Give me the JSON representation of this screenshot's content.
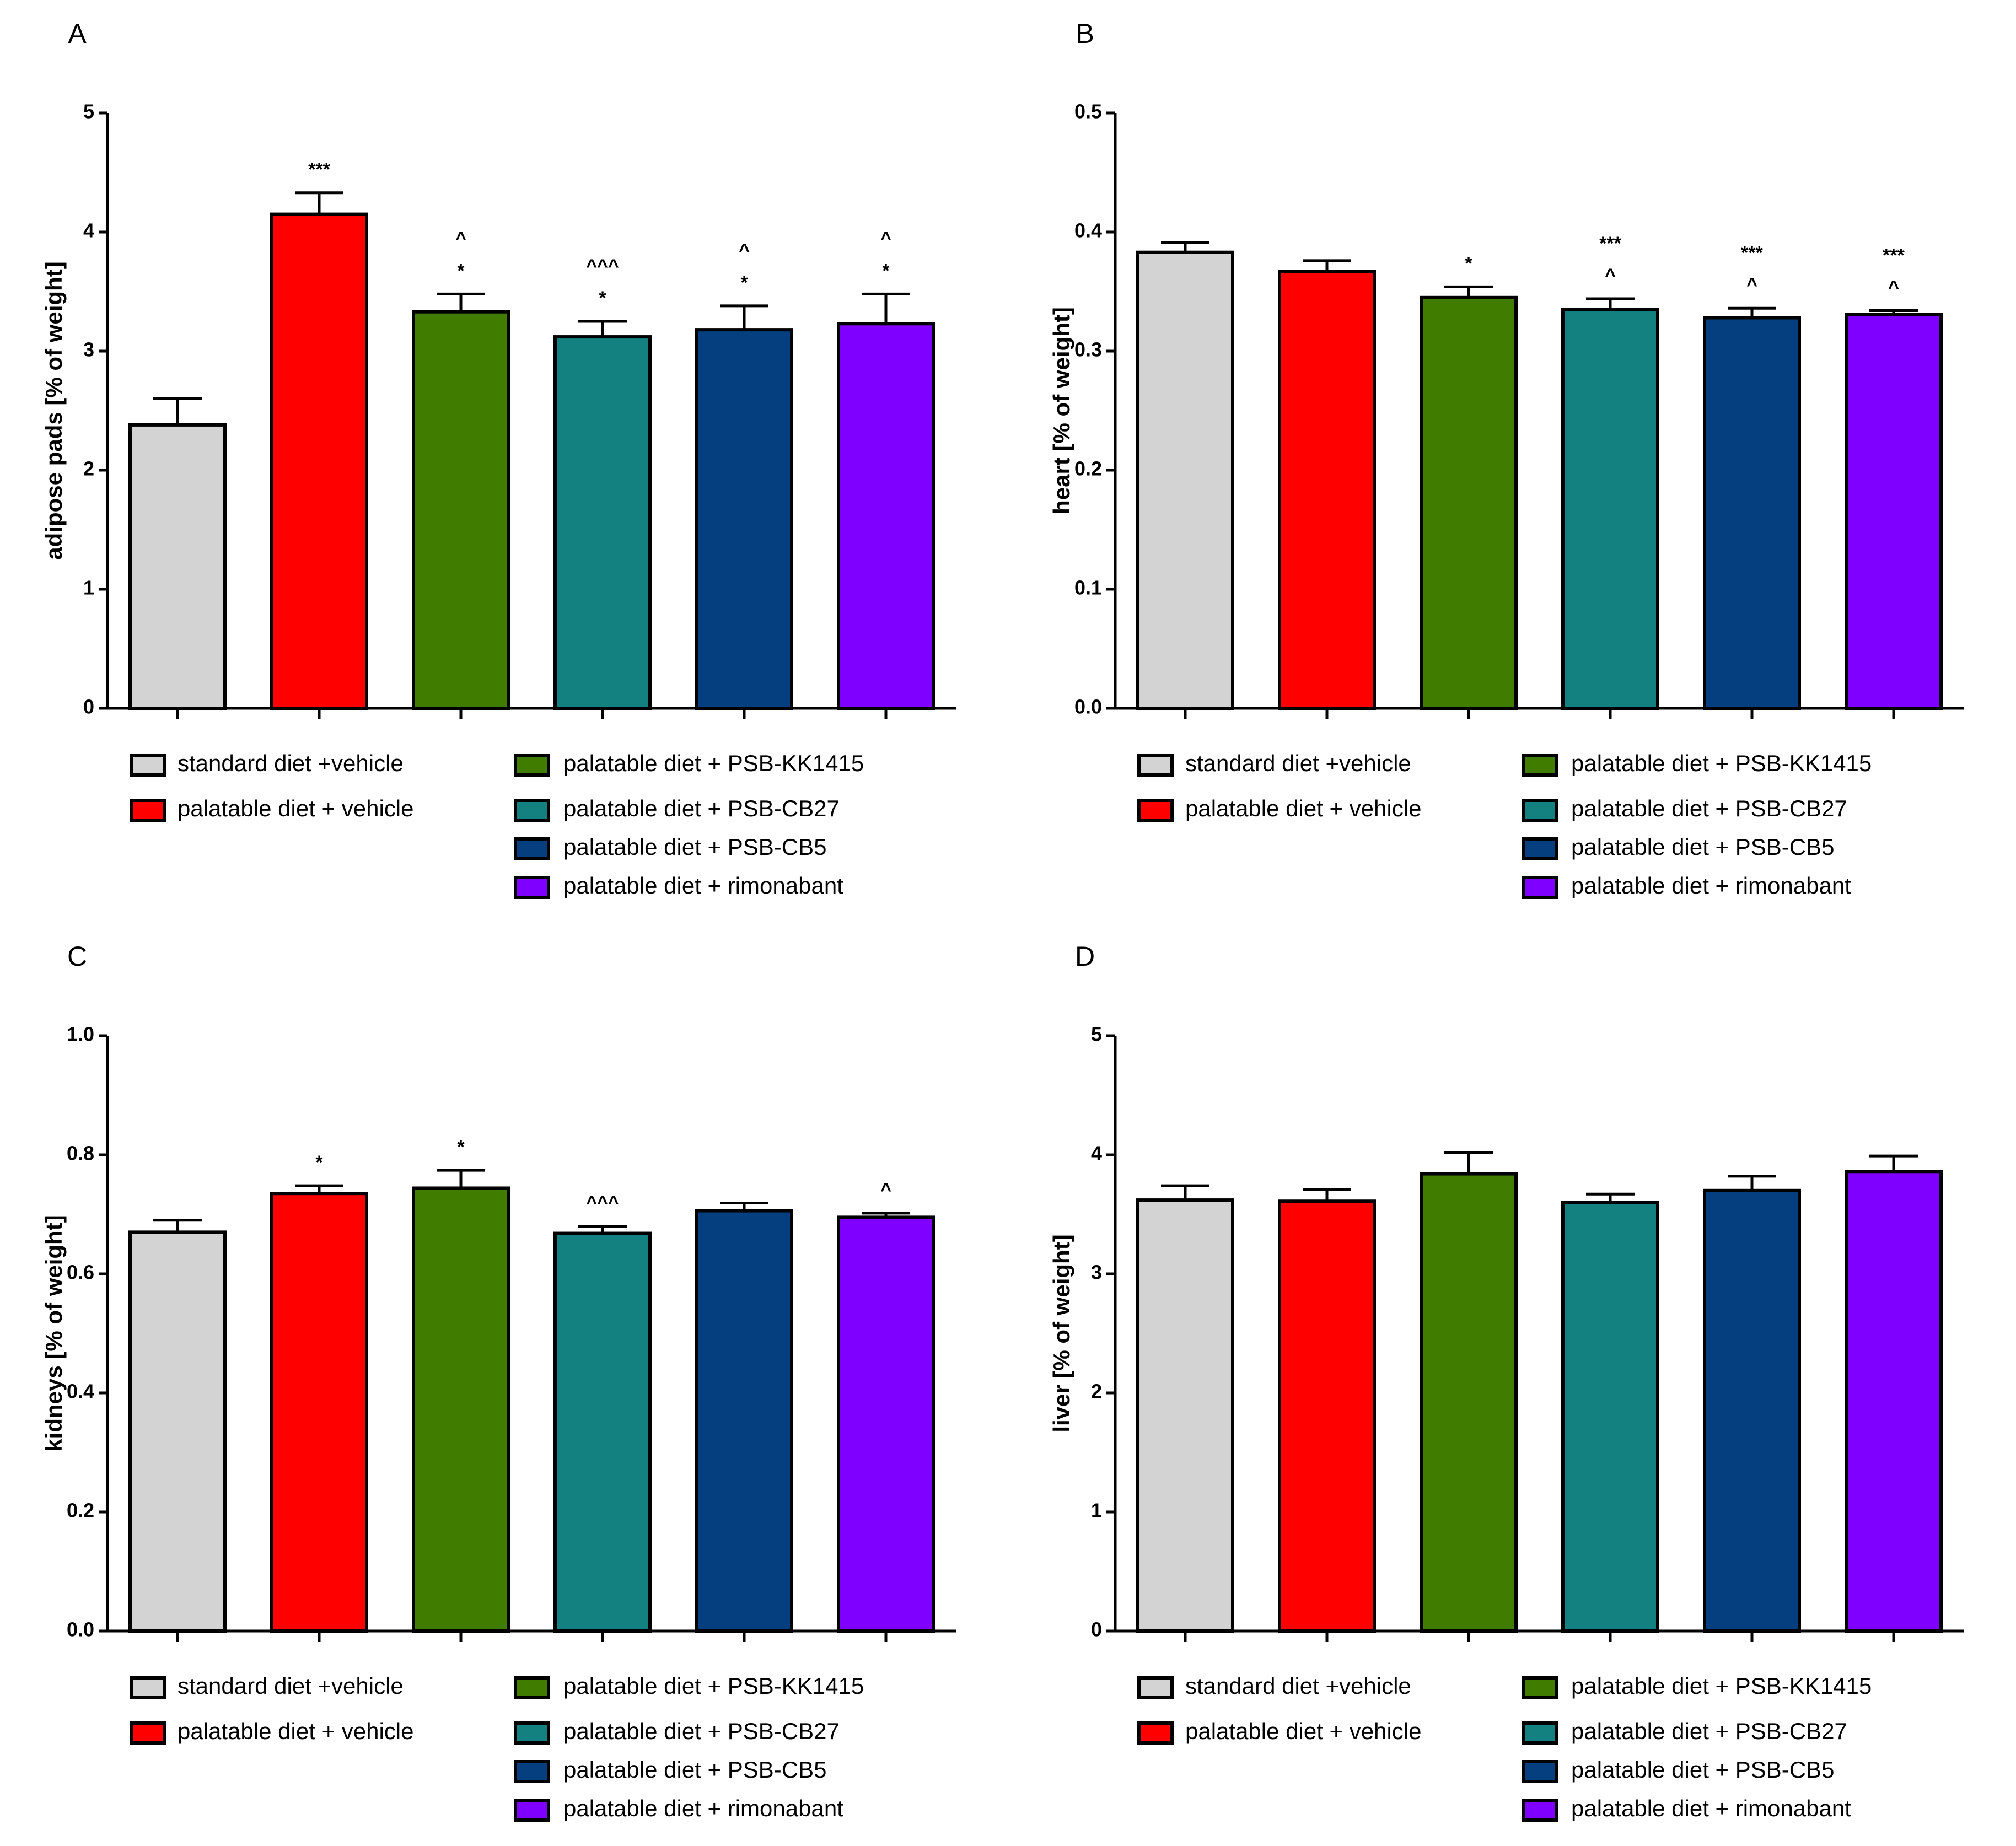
{
  "colors": {
    "standard diet +vehicle": "#d3d3d3",
    "palatable diet + vehicle": "#ff0000",
    "palatable diet + PSB-KK1415": "#3f7c00",
    "palatable diet + PSB-CB27": "#13817f",
    "palatable diet + PSB-CB5": "#053f7f",
    "palatable diet + rimonabant": "#8000ff"
  },
  "chart_data": [
    {
      "panel": "A",
      "type": "bar",
      "ylabel": "adipose pads [% of weight]",
      "ylim": [
        0,
        5
      ],
      "yticks": [
        0,
        1,
        2,
        3,
        4,
        5
      ],
      "ytick_labels": [
        "0",
        "1",
        "2",
        "3",
        "4",
        "5"
      ],
      "grid": false,
      "legend_position": "bottom",
      "categories": [
        "standard diet +vehicle",
        "palatable diet + vehicle",
        "palatable diet + PSB-KK1415",
        "palatable diet + PSB-CB27",
        "palatable diet + PSB-CB5",
        "palatable diet + rimonabant"
      ],
      "values": [
        2.38,
        4.15,
        3.33,
        3.12,
        3.18,
        3.23
      ],
      "errors": [
        0.22,
        0.18,
        0.15,
        0.13,
        0.2,
        0.25
      ],
      "annotations": [
        [],
        [
          "***"
        ],
        [
          "*",
          "^"
        ],
        [
          "*",
          "^^^"
        ],
        [
          "*",
          "^"
        ],
        [
          "*",
          "^"
        ]
      ],
      "legend": {
        "left": [
          "standard diet +vehicle",
          "palatable diet + vehicle"
        ],
        "right": [
          "palatable diet + PSB-KK1415",
          "palatable diet + PSB-CB27",
          "palatable diet + PSB-CB5",
          "palatable diet + rimonabant"
        ]
      }
    },
    {
      "panel": "B",
      "type": "bar",
      "ylabel": "heart [% of weight]",
      "ylim": [
        0,
        0.5
      ],
      "yticks": [
        0,
        0.1,
        0.2,
        0.3,
        0.4,
        0.5
      ],
      "ytick_labels": [
        "0.0",
        "0.1",
        "0.2",
        "0.3",
        "0.4",
        "0.5"
      ],
      "grid": false,
      "legend_position": "bottom",
      "categories": [
        "standard diet +vehicle",
        "palatable diet + vehicle",
        "palatable diet + PSB-KK1415",
        "palatable diet + PSB-CB27",
        "palatable diet + PSB-CB5",
        "palatable diet + rimonabant"
      ],
      "values": [
        0.383,
        0.367,
        0.345,
        0.335,
        0.328,
        0.331
      ],
      "errors": [
        0.008,
        0.009,
        0.009,
        0.009,
        0.008,
        0.003
      ],
      "annotations": [
        [],
        [],
        [
          "*"
        ],
        [
          "^",
          "***"
        ],
        [
          "^",
          "***"
        ],
        [
          "^",
          "***"
        ]
      ],
      "legend": {
        "left": [
          "standard diet +vehicle",
          "palatable diet + vehicle"
        ],
        "right": [
          "palatable diet + PSB-KK1415",
          "palatable diet + PSB-CB27",
          "palatable diet + PSB-CB5",
          "palatable diet + rimonabant"
        ]
      }
    },
    {
      "panel": "C",
      "type": "bar",
      "ylabel": "kidneys [% of weight]",
      "ylim": [
        0,
        1
      ],
      "yticks": [
        0,
        0.2,
        0.4,
        0.6,
        0.8,
        1.0
      ],
      "ytick_labels": [
        "0.0",
        "0.2",
        "0.4",
        "0.6",
        "0.8",
        "1.0"
      ],
      "grid": false,
      "legend_position": "bottom",
      "categories": [
        "standard diet +vehicle",
        "palatable diet + vehicle",
        "palatable diet + PSB-KK1415",
        "palatable diet + PSB-CB27",
        "palatable diet + PSB-CB5",
        "palatable diet + rimonabant"
      ],
      "values": [
        0.67,
        0.735,
        0.744,
        0.668,
        0.706,
        0.695
      ],
      "errors": [
        0.02,
        0.013,
        0.03,
        0.012,
        0.013,
        0.007
      ],
      "annotations": [
        [],
        [
          "*"
        ],
        [
          "*"
        ],
        [
          "^^^"
        ],
        [],
        [
          "^"
        ]
      ],
      "legend": {
        "left": [
          "standard diet +vehicle",
          "palatable diet + vehicle"
        ],
        "right": [
          "palatable diet + PSB-KK1415",
          "palatable diet + PSB-CB27",
          "palatable diet + PSB-CB5",
          "palatable diet + rimonabant"
        ]
      }
    },
    {
      "panel": "D",
      "type": "bar",
      "ylabel": "liver  [% of weight]",
      "ylim": [
        0,
        5
      ],
      "yticks": [
        0,
        1,
        2,
        3,
        4,
        5
      ],
      "ytick_labels": [
        "0",
        "1",
        "2",
        "3",
        "4",
        "5"
      ],
      "grid": false,
      "legend_position": "bottom",
      "categories": [
        "standard diet +vehicle",
        "palatable diet + vehicle",
        "palatable diet + PSB-KK1415",
        "palatable diet + PSB-CB27",
        "palatable diet + PSB-CB5",
        "palatable diet + rimonabant"
      ],
      "values": [
        3.62,
        3.61,
        3.84,
        3.6,
        3.7,
        3.86
      ],
      "errors": [
        0.12,
        0.1,
        0.18,
        0.07,
        0.12,
        0.13
      ],
      "annotations": [
        [],
        [],
        [],
        [],
        [],
        []
      ],
      "legend": {
        "left": [
          "standard diet +vehicle",
          "palatable diet + vehicle"
        ],
        "right": [
          "palatable diet + PSB-KK1415",
          "palatable diet + PSB-CB27",
          "palatable diet + PSB-CB5",
          "palatable diet + rimonabant"
        ]
      }
    }
  ]
}
